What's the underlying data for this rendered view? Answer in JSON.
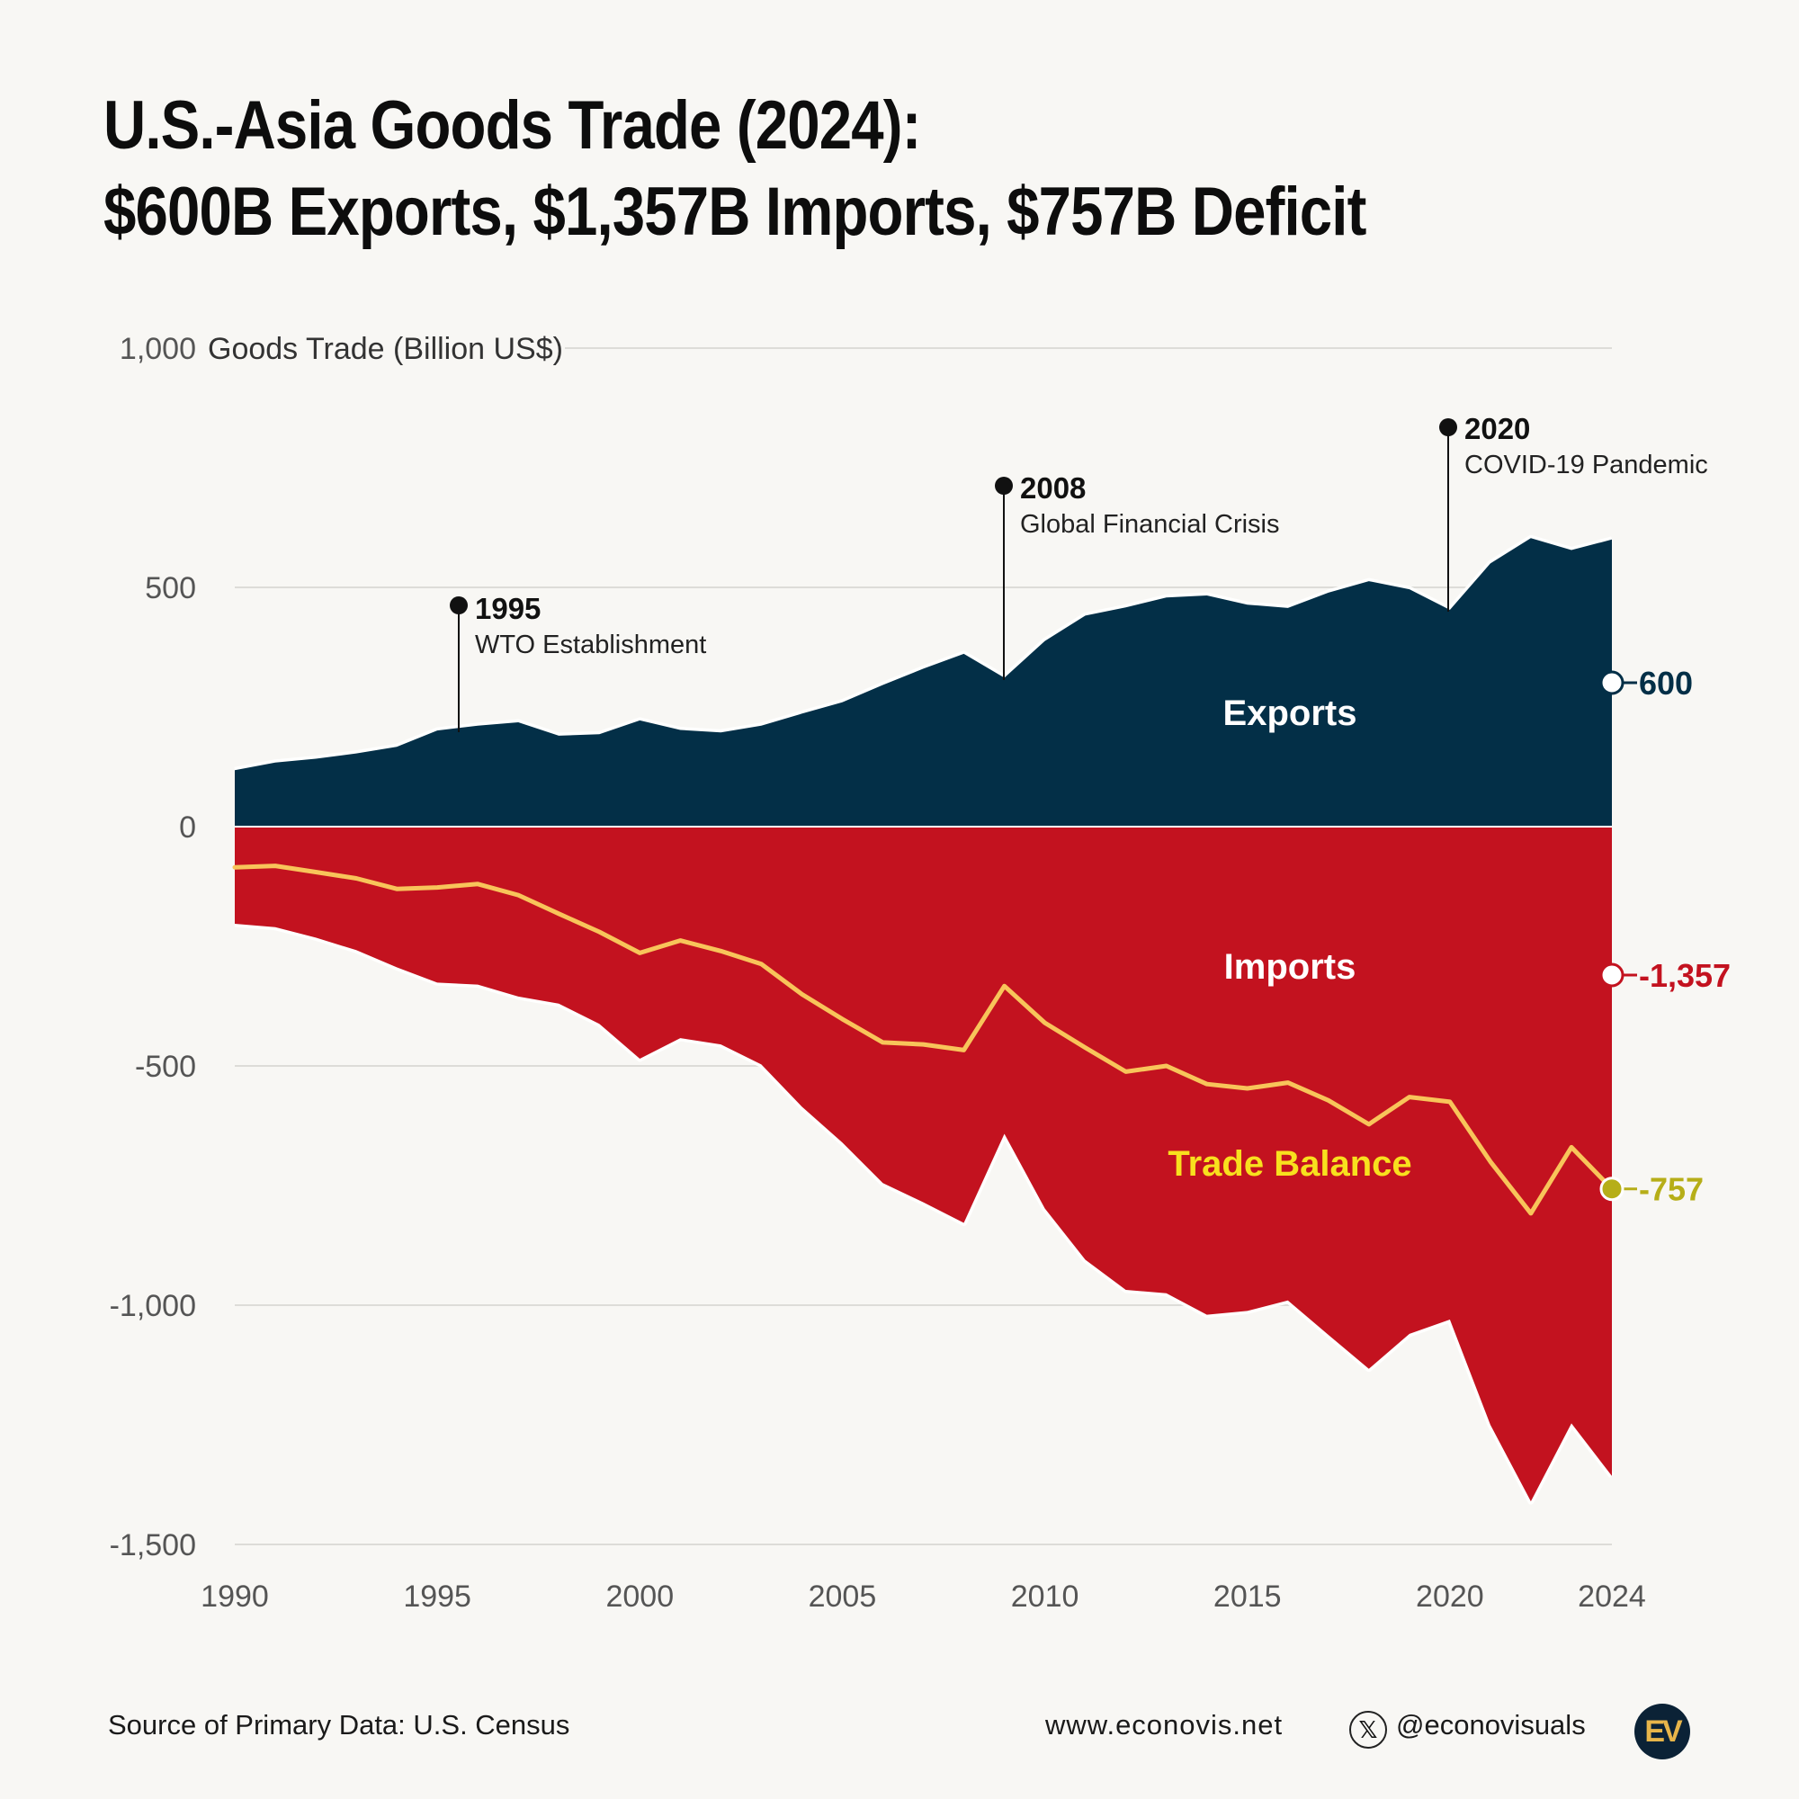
{
  "title_line1": "U.S.-Asia Goods Trade (2024):",
  "title_line2": "$600B Exports, $1,357B Imports, $757B Deficit",
  "footer": {
    "source": "Source of Primary Data: U.S. Census",
    "website": "www.econovis.net",
    "handle": "@econovisuals",
    "x_glyph": "𝕏",
    "logo": "EV"
  },
  "colors": {
    "exports": "#032f47",
    "imports": "#c3121f",
    "balance": "#f8c45a",
    "balance_label": "#f8e01e",
    "balance_marker": "#b6ae18",
    "grid": "#dddcd8",
    "tick": "#555555"
  },
  "chart_data": {
    "type": "area",
    "ylabel": "Goods Trade (Billion US$)",
    "ylim": [
      -1500,
      1000
    ],
    "yticks": [
      1000,
      500,
      0,
      -500,
      -1000,
      -1500
    ],
    "ytick_labels": [
      "1,000",
      "500",
      "0",
      "-500",
      "-1,000",
      "-1,500"
    ],
    "xlim": [
      1990,
      2024
    ],
    "xticks": [
      1990,
      1995,
      2000,
      2005,
      2010,
      2015,
      2020,
      2024
    ],
    "xtick_labels": [
      "1990",
      "1995",
      "2000",
      "2005",
      "2010",
      "2015",
      "2020",
      "2024"
    ],
    "x": [
      1990,
      1991,
      1992,
      1993,
      1994,
      1995,
      1996,
      1997,
      1998,
      1999,
      2000,
      2001,
      2002,
      2003,
      2004,
      2005,
      2006,
      2007,
      2008,
      2009,
      2010,
      2011,
      2012,
      2013,
      2014,
      2015,
      2016,
      2017,
      2018,
      2019,
      2020,
      2021,
      2022,
      2023,
      2024
    ],
    "series": [
      {
        "name": "Exports",
        "label": "Exports",
        "values": [
          118,
          134,
          142,
          153,
          167,
          201,
          211,
          218,
          190,
          193,
          222,
          202,
          197,
          211,
          236,
          260,
          296,
          330,
          361,
          311,
          388,
          441,
          458,
          479,
          483,
          464,
          457,
          489,
          513,
          496,
          453,
          550,
          603,
          578,
          600
        ]
      },
      {
        "name": "Imports",
        "label": "Imports",
        "values": [
          -203,
          -210,
          -232,
          -258,
          -294,
          -326,
          -330,
          -355,
          -370,
          -412,
          -485,
          -442,
          -455,
          -497,
          -585,
          -660,
          -745,
          -785,
          -828,
          -642,
          -798,
          -905,
          -968,
          -975,
          -1020,
          -1012,
          -990,
          -1062,
          -1133,
          -1060,
          -1030,
          -1250,
          -1410,
          -1247,
          -1357
        ]
      },
      {
        "name": "Trade Balance",
        "label": "Trade Balance",
        "values": [
          -85,
          -82,
          -95,
          -108,
          -130,
          -127,
          -120,
          -143,
          -182,
          -220,
          -264,
          -238,
          -260,
          -287,
          -350,
          -402,
          -451,
          -455,
          -467,
          -333,
          -410,
          -462,
          -512,
          -500,
          -538,
          -547,
          -535,
          -572,
          -622,
          -565,
          -575,
          -700,
          -808,
          -670,
          -757
        ]
      }
    ],
    "end_labels": {
      "exports": "600",
      "imports": "-1,357",
      "balance": "-757"
    },
    "annotations": [
      {
        "year": "1995",
        "text": "WTO Establishment"
      },
      {
        "year": "2008",
        "text": "Global Financial Crisis"
      },
      {
        "year": "2020",
        "text": "COVID-19 Pandemic"
      }
    ]
  }
}
